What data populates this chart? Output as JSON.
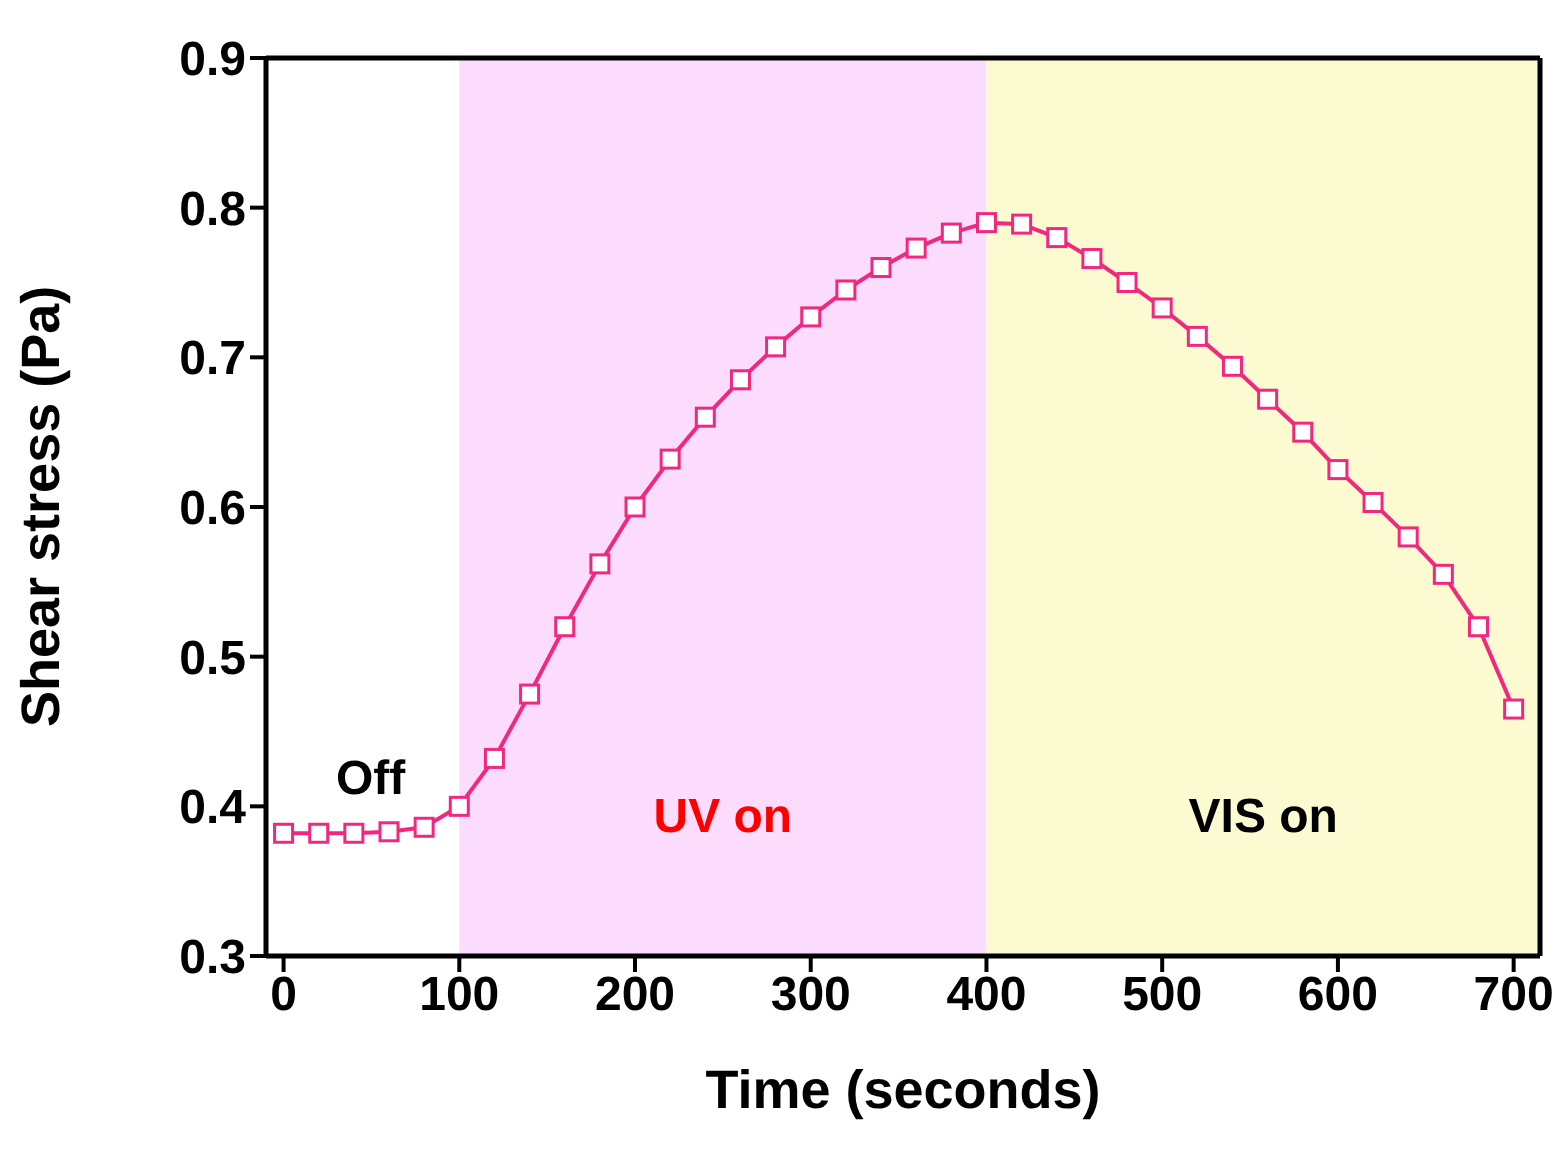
{
  "chart_data": {
    "type": "line",
    "xlabel": "Time (seconds)",
    "ylabel": "Shear stress (Pa)",
    "xlim": [
      -10,
      715
    ],
    "xticks": [
      0,
      100,
      200,
      300,
      400,
      500,
      600,
      700
    ],
    "ylim": [
      0.3,
      0.9
    ],
    "yticks": [
      0.3,
      0.4,
      0.5,
      0.6,
      0.7,
      0.8,
      0.9
    ],
    "x": [
      0,
      20,
      40,
      60,
      80,
      100,
      120,
      140,
      160,
      180,
      200,
      220,
      240,
      260,
      280,
      300,
      320,
      340,
      360,
      380,
      400,
      420,
      440,
      460,
      480,
      500,
      520,
      540,
      560,
      580,
      600,
      620,
      640,
      660,
      680,
      700
    ],
    "series": [
      {
        "color": "#f0287f",
        "values": [
          0.382,
          0.382,
          0.382,
          0.383,
          0.386,
          0.4,
          0.432,
          0.475,
          0.52,
          0.562,
          0.6,
          0.632,
          0.66,
          0.685,
          0.707,
          0.727,
          0.745,
          0.76,
          0.773,
          0.783,
          0.79,
          0.789,
          0.78,
          0.766,
          0.75,
          0.733,
          0.714,
          0.694,
          0.672,
          0.65,
          0.625,
          0.603,
          0.58,
          0.555,
          0.52,
          0.465
        ]
      }
    ],
    "marker": "square",
    "grid": false,
    "legend": false,
    "annotations": [
      "Off"
    ],
    "bands": [
      {
        "axis": "x",
        "from": 100,
        "to": 400,
        "label": "UV on",
        "color": "#fcdcfc"
      },
      {
        "axis": "x",
        "from": 400,
        "to": 715,
        "label": "VIS on",
        "color": "#fcfad0"
      }
    ]
  }
}
